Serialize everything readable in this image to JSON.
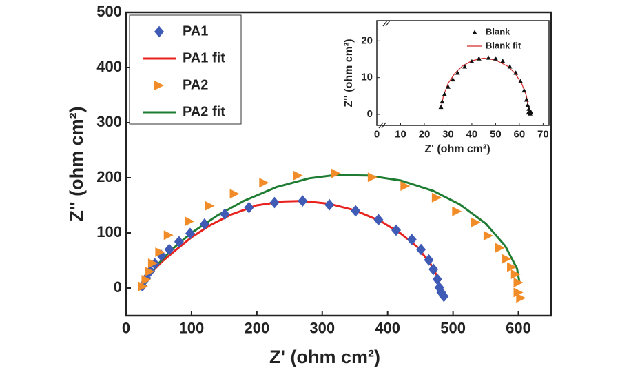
{
  "chart_data": [
    {
      "type": "scatter",
      "x_label": "Z' (ohm cm²)",
      "y_label": "Z'' (ohm cm²)",
      "xlim": [
        0,
        650
      ],
      "ylim": [
        -50,
        500
      ],
      "xticks": [
        0,
        100,
        200,
        300,
        400,
        500,
        600
      ],
      "yticks": [
        0,
        100,
        200,
        300,
        400,
        500
      ],
      "legend": "upper left",
      "series": [
        {
          "name": "PA1",
          "type": "scatter",
          "marker": "diamond",
          "color": "#3f5bb5",
          "x": [
            25,
            31,
            37,
            44,
            54,
            66,
            81,
            98,
            120,
            151,
            188,
            227,
            270,
            311,
            351,
            386,
            413,
            437,
            451,
            463,
            470,
            476,
            479,
            482,
            486
          ],
          "values": [
            4,
            18,
            31,
            44,
            59,
            70,
            84,
            99,
            116,
            134,
            146,
            155,
            158,
            151,
            140,
            124,
            105,
            88,
            70,
            51,
            34,
            16,
            1,
            -8,
            -15
          ]
        },
        {
          "name": "PA1 fit",
          "type": "line",
          "color": "#e8231f",
          "x": [
            24,
            30,
            40,
            55,
            75,
            100,
            130,
            160,
            200,
            240,
            270,
            310,
            350,
            390,
            420,
            445,
            465,
            480
          ],
          "values": [
            0,
            14,
            30,
            48,
            68,
            92,
            115,
            133,
            150,
            157,
            158,
            153,
            141,
            121,
            99,
            75,
            45,
            12
          ]
        },
        {
          "name": "PA2",
          "type": "scatter",
          "marker": "triangle-right",
          "color": "#f28c28",
          "x": [
            26,
            31,
            36,
            41,
            52,
            65,
            97,
            128,
            166,
            211,
            263,
            321,
            377,
            427,
            475,
            506,
            535,
            554,
            572,
            582,
            590,
            596,
            600,
            600,
            604
          ],
          "values": [
            3,
            15,
            30,
            45,
            65,
            96,
            121,
            149,
            171,
            191,
            204,
            208,
            201,
            185,
            164,
            139,
            119,
            95,
            73,
            53,
            38,
            25,
            10,
            -8,
            -18
          ]
        },
        {
          "name": "PA2 fit",
          "type": "line",
          "color": "#1e7d32",
          "x": [
            26,
            35,
            50,
            70,
            100,
            140,
            180,
            230,
            280,
            320,
            370,
            420,
            470,
            510,
            550,
            580,
            598,
            602
          ],
          "values": [
            2,
            22,
            45,
            70,
            100,
            132,
            158,
            183,
            199,
            205,
            204,
            195,
            176,
            152,
            117,
            76,
            35,
            8
          ]
        }
      ]
    },
    {
      "type": "scatter",
      "x_label": "Z' (ohm cm²)",
      "y_label": "Z'' (ohm cm²)",
      "xlim": [
        0,
        72.5
      ],
      "ylim": [
        -3,
        25.5
      ],
      "xticks": [
        0,
        10,
        20,
        30,
        40,
        50,
        60,
        70
      ],
      "yticks": [
        0,
        10,
        20
      ],
      "legend": "upper right",
      "series": [
        {
          "name": "Blank",
          "type": "scatter",
          "marker": "triangle-up",
          "color": "#111111",
          "x": [
            27,
            27.5,
            28.5,
            30,
            32,
            34,
            37,
            40,
            43,
            47,
            50,
            53,
            56,
            58.5,
            60.5,
            62,
            63,
            63.5,
            64,
            64.5,
            65,
            64.5,
            63.8
          ],
          "values": [
            2,
            3.5,
            5.5,
            7.5,
            9.5,
            11.3,
            13,
            14.4,
            15.2,
            15.4,
            15.2,
            14.5,
            13,
            11.3,
            9,
            6.5,
            4,
            2.5,
            1.5,
            0.8,
            0.5,
            0.2,
            0.5
          ]
        },
        {
          "name": "Blank fit",
          "type": "line",
          "color": "#d42a2a",
          "x": [
            27,
            28,
            30,
            33,
            36,
            40,
            45,
            50,
            55,
            58,
            61,
            63,
            64
          ],
          "values": [
            1.5,
            5,
            8.4,
            11.3,
            13.1,
            14.6,
            15.3,
            14.8,
            13.1,
            11.3,
            8.4,
            5,
            1
          ]
        }
      ]
    }
  ]
}
